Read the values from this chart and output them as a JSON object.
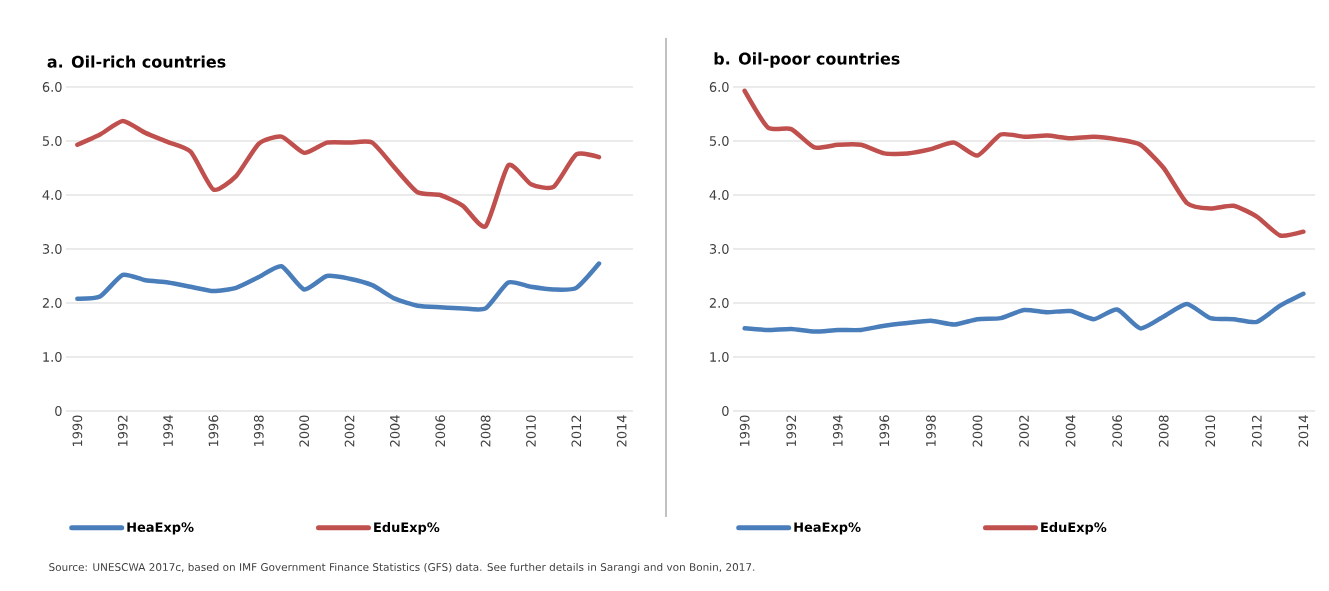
{
  "chart_data": [
    {
      "type": "line",
      "title": "a. Oil-rich countries",
      "x": [
        1990,
        1991,
        1992,
        1993,
        1994,
        1995,
        1996,
        1997,
        1998,
        1999,
        2000,
        2001,
        2002,
        2003,
        2004,
        2005,
        2006,
        2007,
        2008,
        2009,
        2010,
        2011,
        2012,
        2013
      ],
      "series": [
        {
          "name": "HeaExp%",
          "color": "#4a7ebb",
          "values": [
            2.08,
            2.12,
            2.52,
            2.42,
            2.38,
            2.3,
            2.22,
            2.28,
            2.48,
            2.68,
            2.25,
            2.5,
            2.45,
            2.33,
            2.08,
            1.95,
            1.92,
            1.9,
            1.9,
            2.38,
            2.3,
            2.25,
            2.28,
            2.73
          ]
        },
        {
          "name": "EduExp%",
          "color": "#c0504d",
          "values": [
            4.93,
            5.12,
            5.37,
            5.15,
            4.98,
            4.8,
            4.1,
            4.35,
            4.95,
            5.08,
            4.78,
            4.97,
            4.97,
            4.97,
            4.5,
            4.05,
            4.0,
            3.8,
            3.42,
            4.55,
            4.2,
            4.15,
            4.75,
            4.7
          ]
        }
      ],
      "xlim": [
        1989.5,
        2014.5
      ],
      "xticks": [
        1990,
        1992,
        1994,
        1996,
        1998,
        2000,
        2002,
        2004,
        2006,
        2008,
        2010,
        2012,
        2014
      ],
      "ylim": [
        0,
        6
      ],
      "yticks": [
        0,
        {
          "value": 1,
          "label": "1.0"
        },
        {
          "value": 2,
          "label": "2.0"
        },
        {
          "value": 3,
          "label": "3.0"
        },
        {
          "value": 4,
          "label": "4.0"
        },
        {
          "value": 5,
          "label": "5.0"
        },
        {
          "value": 6,
          "label": "6.0"
        }
      ],
      "grid": "y",
      "legend": "bottom",
      "marker": "none",
      "line_style": "solid",
      "annotations": [
        "Source: UNESCWA 2017c, based on IMF Government Finance Statistics (GFS) data. See further details in Sarangi and von Bonin, 2017."
      ]
    },
    {
      "type": "line",
      "title": "b. Oil-poor countries",
      "x": [
        1990,
        1991,
        1992,
        1993,
        1994,
        1995,
        1996,
        1997,
        1998,
        1999,
        2000,
        2001,
        2002,
        2003,
        2004,
        2005,
        2006,
        2007,
        2008,
        2009,
        2010,
        2011,
        2012,
        2013,
        2014
      ],
      "series": [
        {
          "name": "HeaExp%",
          "color": "#4a7ebb",
          "values": [
            1.53,
            1.5,
            1.52,
            1.47,
            1.5,
            1.5,
            1.58,
            1.63,
            1.67,
            1.6,
            1.7,
            1.72,
            1.87,
            1.83,
            1.85,
            1.7,
            1.88,
            1.53,
            1.75,
            1.98,
            1.72,
            1.7,
            1.65,
            1.95,
            2.17
          ]
        },
        {
          "name": "EduExp%",
          "color": "#c0504d",
          "values": [
            5.93,
            5.25,
            5.22,
            4.88,
            4.93,
            4.93,
            4.77,
            4.77,
            4.85,
            4.97,
            4.73,
            5.12,
            5.08,
            5.1,
            5.05,
            5.08,
            5.03,
            4.93,
            4.5,
            3.85,
            3.75,
            3.8,
            3.6,
            3.25,
            3.32
          ]
        }
      ],
      "xlim": [
        1989.5,
        2014.5
      ],
      "xticks": [
        1990,
        1992,
        1994,
        1996,
        1998,
        2000,
        2002,
        2004,
        2006,
        2008,
        2010,
        2012,
        2014
      ],
      "ylim": [
        0,
        6
      ],
      "yticks": [
        0,
        {
          "value": 1,
          "label": "1.0"
        },
        {
          "value": 2,
          "label": "2.0"
        },
        {
          "value": 3,
          "label": "3.0"
        },
        {
          "value": 4,
          "label": "4.0"
        },
        {
          "value": 5,
          "label": "5.0"
        },
        {
          "value": 6,
          "label": "6.0"
        }
      ],
      "grid": "y",
      "legend": "bottom",
      "marker": "none",
      "line_style": "solid"
    }
  ]
}
